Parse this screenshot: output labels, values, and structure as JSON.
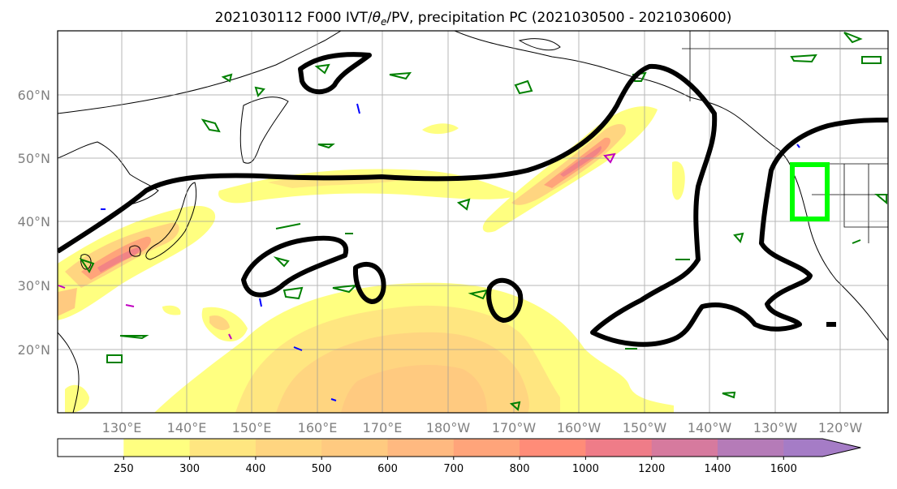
{
  "title": {
    "prefix": "2021030112 F000 IVT/",
    "theta": "θ",
    "theta_sub": "e",
    "suffix": "/PV, precipitation PC (2021030500 - 2021030600)"
  },
  "chart_data": {
    "type": "map",
    "lon_range": [
      120,
      246
    ],
    "lat_range": [
      10,
      70
    ],
    "lon_tick_labels": [
      "130°E",
      "140°E",
      "150°E",
      "160°E",
      "170°E",
      "180°W",
      "170°W",
      "160°W",
      "150°W",
      "140°W",
      "130°W",
      "120°W"
    ],
    "lat_tick_labels": [
      "60°N",
      "50°N",
      "40°N",
      "30°N",
      "20°N"
    ],
    "grid": true,
    "highlight_box": {
      "lon": [
        235,
        240.5
      ],
      "lat": [
        40.5,
        49
      ],
      "color": "#00ff00"
    },
    "colorbar": {
      "levels": [
        "250",
        "300",
        "400",
        "500",
        "600",
        "700",
        "800",
        "1000",
        "1200",
        "1400",
        "1600"
      ],
      "colors": [
        "#ffffff",
        "#ffff80",
        "#ffe680",
        "#ffd580",
        "#ffca80",
        "#ffb980",
        "#ffa47a",
        "#ff8c78",
        "#ef7c88",
        "#d67a9e",
        "#b57bb8",
        "#a57cc6"
      ],
      "extend": "max"
    },
    "contour_colors": {
      "pv": "#000000",
      "theta_e": "#008000",
      "minus": "#0000ff",
      "plus": "#c000c0"
    }
  }
}
